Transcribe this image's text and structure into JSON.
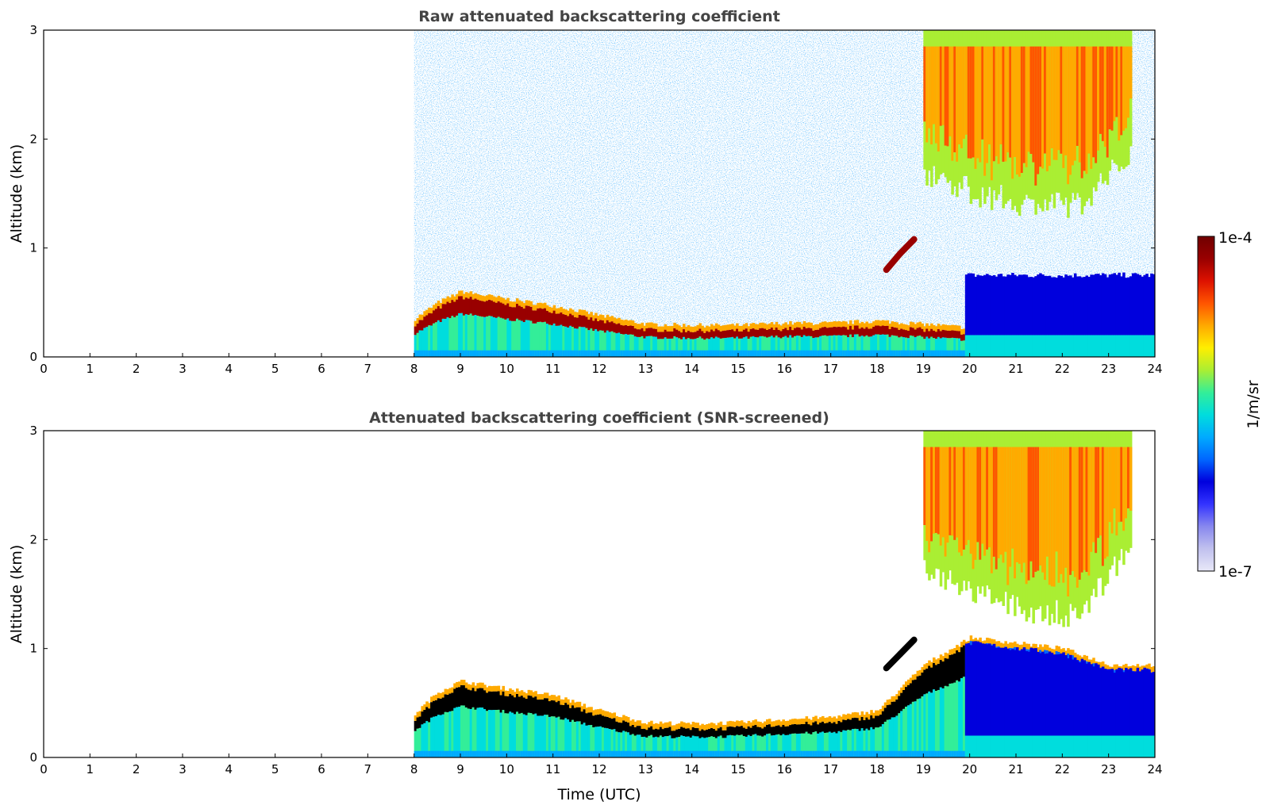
{
  "colors": {
    "text_title": "#444444",
    "background": "#ffffff",
    "colormap": [
      "#e8e8f8",
      "#c0c0ee",
      "#8888ee",
      "#3333ff",
      "#0000dd",
      "#0066ff",
      "#00aaff",
      "#00dddd",
      "#33ee99",
      "#aaee33",
      "#ffee00",
      "#ffaa00",
      "#ff5500",
      "#dd1100",
      "#990000",
      "#700000"
    ]
  },
  "chart_data": [
    {
      "type": "heatmap",
      "title": "Raw attenuated backscattering coefficient",
      "xlabel": "",
      "ylabel": "Altitude (km)",
      "xlim": [
        0,
        24
      ],
      "ylim": [
        0,
        3
      ],
      "xticks": [
        "0",
        "1",
        "2",
        "3",
        "4",
        "5",
        "6",
        "7",
        "8",
        "9",
        "10",
        "11",
        "12",
        "13",
        "14",
        "15",
        "16",
        "17",
        "18",
        "19",
        "20",
        "21",
        "22",
        "23",
        "24"
      ],
      "yticks": [
        "0",
        "1",
        "2",
        "3"
      ],
      "data_start_utc": 8,
      "boundary_layer_top_km": [
        [
          8.0,
          0.3
        ],
        [
          8.5,
          0.45
        ],
        [
          9.0,
          0.55
        ],
        [
          10.0,
          0.48
        ],
        [
          11.0,
          0.42
        ],
        [
          12.0,
          0.33
        ],
        [
          13.0,
          0.25
        ],
        [
          14.0,
          0.24
        ],
        [
          15.0,
          0.24
        ],
        [
          16.0,
          0.26
        ],
        [
          17.0,
          0.26
        ],
        [
          18.0,
          0.28
        ],
        [
          19.0,
          0.25
        ],
        [
          19.9,
          0.22
        ]
      ],
      "elevated_layer_km": [
        [
          18.2,
          0.8
        ],
        [
          18.5,
          0.95
        ],
        [
          18.8,
          1.08
        ]
      ],
      "cirrus_band_km": {
        "from_utc": 19.0,
        "to_utc": 23.5,
        "base_km": [
          1.7,
          1.5,
          1.4,
          1.4,
          1.9
        ],
        "top_km": 3.0
      }
    },
    {
      "type": "heatmap",
      "title": "Attenuated backscattering coefficient (SNR-screened)",
      "xlabel": "Time (UTC)",
      "ylabel": "Altitude (km)",
      "xlim": [
        0,
        24
      ],
      "ylim": [
        0,
        3
      ],
      "xticks": [
        "0",
        "1",
        "2",
        "3",
        "4",
        "5",
        "6",
        "7",
        "8",
        "9",
        "10",
        "11",
        "12",
        "13",
        "14",
        "15",
        "16",
        "17",
        "18",
        "19",
        "20",
        "21",
        "22",
        "23",
        "24"
      ],
      "yticks": [
        "0",
        "1",
        "2",
        "3"
      ],
      "data_start_utc": 8,
      "boundary_layer_top_km": [
        [
          8.0,
          0.35
        ],
        [
          8.5,
          0.55
        ],
        [
          9.0,
          0.65
        ],
        [
          10.0,
          0.58
        ],
        [
          11.0,
          0.52
        ],
        [
          12.0,
          0.38
        ],
        [
          13.0,
          0.27
        ],
        [
          14.0,
          0.26
        ],
        [
          15.0,
          0.27
        ],
        [
          16.0,
          0.3
        ],
        [
          17.0,
          0.32
        ],
        [
          18.0,
          0.38
        ],
        [
          19.0,
          0.8
        ],
        [
          20.0,
          1.05
        ],
        [
          22.0,
          0.95
        ],
        [
          23.0,
          0.8
        ],
        [
          24.0,
          0.8
        ]
      ],
      "elevated_layer_km": [
        [
          18.2,
          0.82
        ],
        [
          18.5,
          0.95
        ],
        [
          18.8,
          1.08
        ]
      ],
      "cirrus_band_km": {
        "from_utc": 19.0,
        "to_utc": 23.5,
        "base_km": [
          1.7,
          1.5,
          1.35,
          1.3,
          2.0
        ],
        "top_km": 3.0
      }
    }
  ],
  "colorbar": {
    "label": "1/m/sr",
    "max_label": "1e-4",
    "min_label": "1e-7",
    "range": [
      1e-07,
      0.0001
    ],
    "scale": "log"
  }
}
